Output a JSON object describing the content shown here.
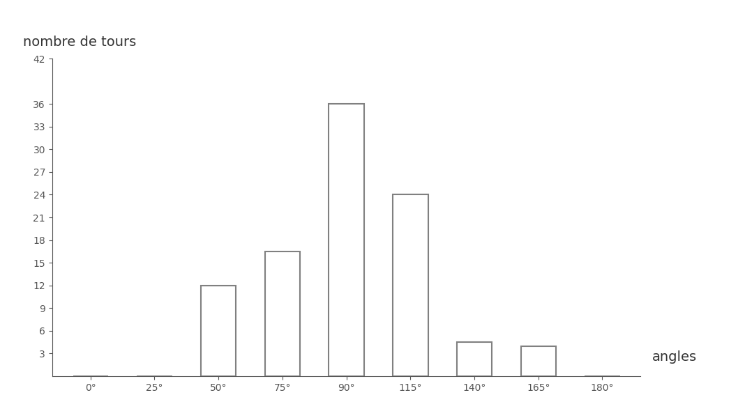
{
  "chart_data": {
    "type": "bar",
    "x_label": "angles",
    "y_label": "nombre de tours",
    "categories": [
      "0°",
      "25°",
      "50°",
      "75°",
      "90°",
      "115°",
      "140°",
      "165°",
      "180°"
    ],
    "values": [
      0,
      0,
      12,
      16.5,
      36,
      24,
      4.5,
      4,
      0
    ],
    "color": "#808080",
    "ylim": [
      0,
      42
    ],
    "yticks": [
      3,
      6,
      9,
      12,
      15,
      18,
      21,
      24,
      27,
      30,
      33,
      36,
      42
    ],
    "grid": false
  }
}
